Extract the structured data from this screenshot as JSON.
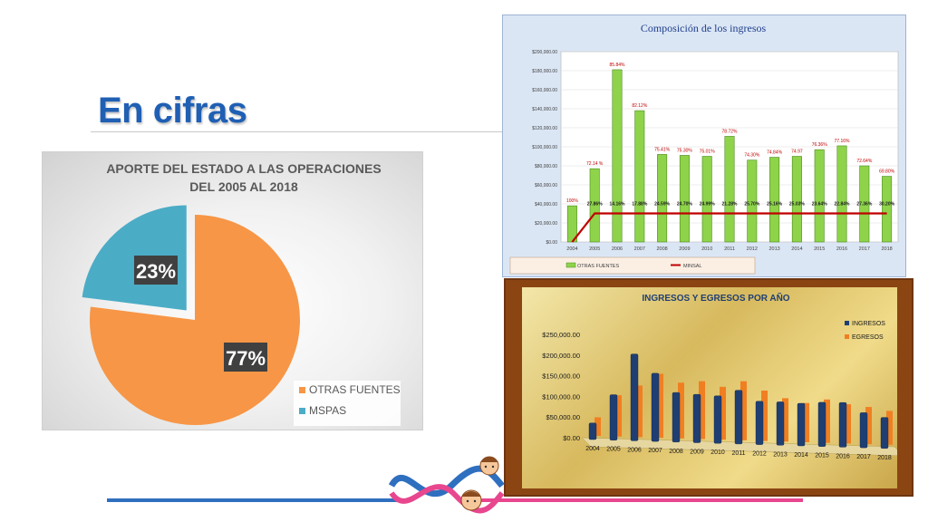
{
  "slide": {
    "title": "En cifras"
  },
  "chart_data": [
    {
      "type": "pie",
      "title": "APORTE DEL ESTADO  A LAS OPERACIONES DEL 2005 AL 2018",
      "title_lines": [
        "APORTE DEL ESTADO  A LAS OPERACIONES",
        "DEL 2005 AL 2018"
      ],
      "categories": [
        "OTRAS FUENTES",
        "MSPAS"
      ],
      "values": [
        77,
        23
      ],
      "labels": [
        "77%",
        "23%"
      ],
      "colors": [
        "#f79646",
        "#4bacc6"
      ],
      "legend": "bottom-right"
    },
    {
      "type": "bar",
      "title": "Composición de los ingresos",
      "categories": [
        "2004",
        "2005",
        "2006",
        "2007",
        "2008",
        "2009",
        "2010",
        "2011",
        "2012",
        "2013",
        "2014",
        "2015",
        "2016",
        "2017",
        "2018"
      ],
      "ylim": [
        0,
        200000
      ],
      "yticks": [
        "$0.00",
        "$20,000.00",
        "$40,000.00",
        "$60,000.00",
        "$80,000.00",
        "$100,000.00",
        "$120,000.00",
        "$140,000.00",
        "$160,000.00",
        "$180,000.00",
        "$200,000.00"
      ],
      "grid": true,
      "legend": "bottom",
      "series": [
        {
          "name": "OTRAS FUENTES",
          "color": "#8ed34a",
          "values": [
            38000,
            77000,
            181000,
            138000,
            92000,
            91000,
            90000,
            111000,
            86000,
            89000,
            90000,
            97000,
            101000,
            80000,
            69000
          ],
          "labels": [
            "100%",
            "72.14 %",
            "85.84%",
            "82.12%",
            "75.41%",
            "75.30%",
            "75.01%",
            "78.72%",
            "74.30%",
            "74.84%",
            "74.97",
            "76.36%",
            "77.16%",
            "72.64%",
            "69.80%"
          ]
        },
        {
          "name": "MINSAL",
          "color": "#c00000",
          "type": "line",
          "values": [
            0,
            30000,
            30000,
            30000,
            30000,
            30000,
            30000,
            30000,
            30000,
            30000,
            30000,
            30000,
            30000,
            30000,
            30000
          ],
          "labels": [
            "",
            "27.86%",
            "14.16%",
            "17.88%",
            "24.59%",
            "24.70%",
            "24.99%",
            "21.28%",
            "25.70%",
            "25.16%",
            "25.03%",
            "23.64%",
            "22.84%",
            "27.36%",
            "30.20%"
          ]
        }
      ]
    },
    {
      "type": "bar",
      "title": "INGRESOS Y EGRESOS POR AÑO",
      "categories": [
        "2004",
        "2005",
        "2006",
        "2007",
        "2008",
        "2009",
        "2010",
        "2011",
        "2012",
        "2013",
        "2014",
        "2015",
        "2016",
        "2017",
        "2018"
      ],
      "ylim": [
        0,
        250000
      ],
      "yticks": [
        "$0.00",
        "$50,000.00",
        "$100,000.00",
        "$150,000.00",
        "$200,000.00",
        "$250,000.00"
      ],
      "legend": "top-right",
      "series": [
        {
          "name": "INGRESOS",
          "color": "#1f3f73",
          "values": [
            40000,
            110000,
            210000,
            165000,
            120000,
            117000,
            115000,
            130000,
            105000,
            105000,
            103000,
            107000,
            108000,
            85000,
            75000
          ]
        },
        {
          "name": "EGRESOS",
          "color": "#f07f22",
          "values": [
            45000,
            100000,
            125000,
            155000,
            135000,
            140000,
            128000,
            143000,
            122000,
            105000,
            95000,
            105000,
            95000,
            90000,
            82000
          ]
        }
      ]
    }
  ]
}
